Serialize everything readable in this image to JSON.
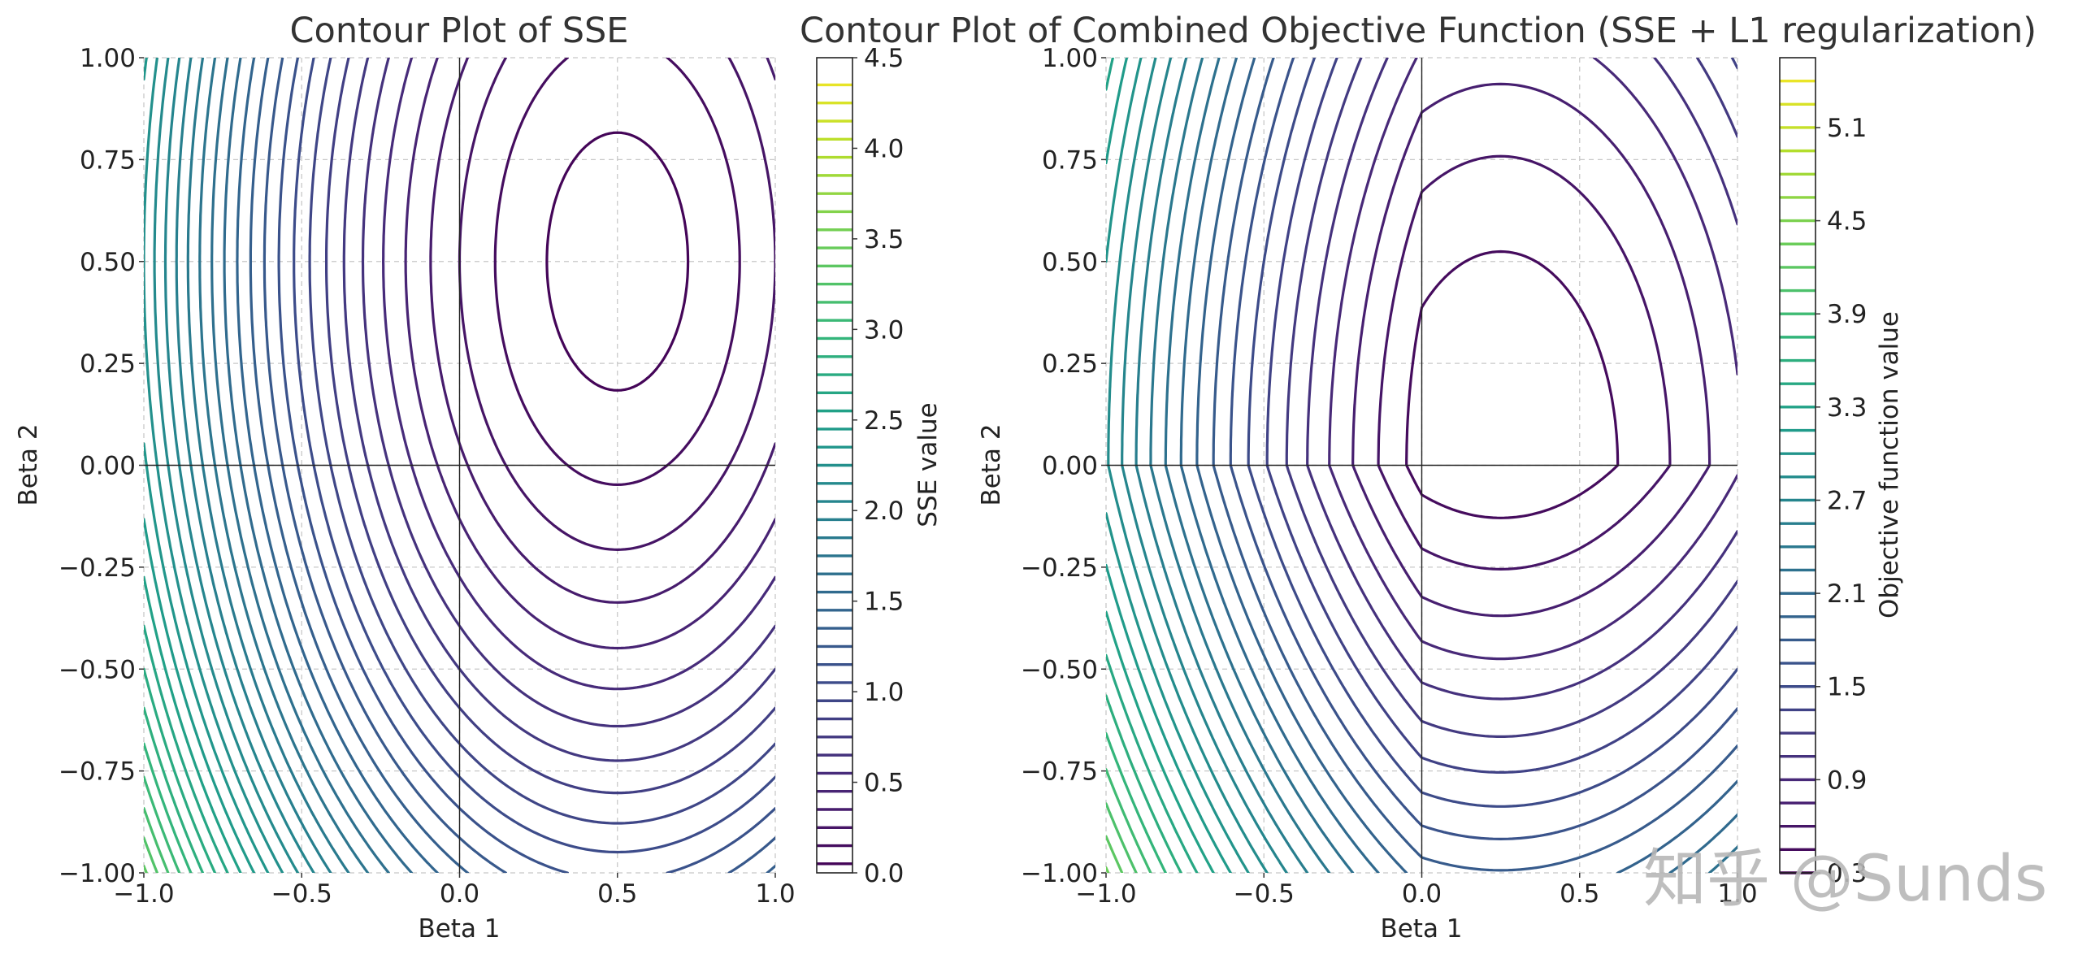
{
  "colors": {
    "viridis_stops": [
      "#440154",
      "#482878",
      "#3e4989",
      "#31688e",
      "#26828e",
      "#1f9e89",
      "#35b779",
      "#6ece58",
      "#b5de2b",
      "#fde725"
    ],
    "grid": "#c8c8c8",
    "zero_line": "#222222",
    "text": "#222222"
  },
  "watermark": "知乎 @Sunds",
  "chart_data": [
    {
      "type": "contour",
      "title": "Contour Plot of SSE",
      "xlabel": "Beta 1",
      "ylabel": "Beta 2",
      "xlim": [
        -1.0,
        1.0
      ],
      "ylim": [
        -1.0,
        1.0
      ],
      "xticks": [
        -1.0,
        -0.5,
        0.0,
        0.5,
        1.0
      ],
      "xtick_labels": [
        "−1.0",
        "−0.5",
        "0.0",
        "0.5",
        "1.0"
      ],
      "yticks": [
        -1.0,
        -0.75,
        -0.5,
        -0.25,
        0.0,
        0.25,
        0.5,
        0.75,
        1.0
      ],
      "ytick_labels": [
        "−1.00",
        "−0.75",
        "−0.50",
        "−0.25",
        "0.00",
        "0.25",
        "0.50",
        "0.75",
        "1.00"
      ],
      "grid": true,
      "function": "SSE = (beta1 - 0.5)^2 + 0.5 * (beta2 - 0.5)^2",
      "minimum": [
        0.5,
        0.5
      ],
      "levels": [
        0.05,
        0.15,
        0.25,
        0.35,
        0.45,
        0.55,
        0.65,
        0.75,
        0.85,
        0.95,
        1.05,
        1.15,
        1.25,
        1.35,
        1.45,
        1.55,
        1.65,
        1.75,
        1.85,
        1.95,
        2.05,
        2.15,
        2.25,
        2.35,
        2.45,
        2.55,
        2.65,
        2.75,
        2.85,
        2.95,
        3.05,
        3.15,
        3.25,
        3.35,
        3.45,
        3.55,
        3.65,
        3.75,
        3.85,
        3.95,
        4.05,
        4.15,
        4.25,
        4.35
      ],
      "colorbar": {
        "label": "SSE value",
        "range": [
          0.0,
          4.5
        ],
        "ticks": [
          0.0,
          0.5,
          1.0,
          1.5,
          2.0,
          2.5,
          3.0,
          3.5,
          4.0,
          4.5
        ],
        "tick_labels": [
          "0.0",
          "0.5",
          "1.0",
          "1.5",
          "2.0",
          "2.5",
          "3.0",
          "3.5",
          "4.0",
          "4.5"
        ]
      }
    },
    {
      "type": "contour",
      "title": "Contour Plot of Combined Objective Function (SSE + L1 regularization)",
      "xlabel": "Beta 1",
      "ylabel": "Beta 2",
      "xlim": [
        -1.0,
        1.0
      ],
      "ylim": [
        -1.0,
        1.0
      ],
      "xticks": [
        -1.0,
        -0.5,
        0.0,
        0.5,
        1.0
      ],
      "xtick_labels": [
        "−1.0",
        "−0.5",
        "0.0",
        "0.5",
        "1.0"
      ],
      "yticks": [
        -1.0,
        -0.75,
        -0.5,
        -0.25,
        0.0,
        0.25,
        0.5,
        0.75,
        1.0
      ],
      "ytick_labels": [
        "−1.00",
        "−0.75",
        "−0.50",
        "−0.25",
        "0.00",
        "0.25",
        "0.50",
        "0.75",
        "1.00"
      ],
      "grid": true,
      "function": "SSE + 0.5 * (|beta1| + |beta2|)",
      "minimum": [
        0.25,
        0.0
      ],
      "levels": [
        0.3,
        0.45,
        0.6,
        0.75,
        0.9,
        1.05,
        1.2,
        1.35,
        1.5,
        1.65,
        1.8,
        1.95,
        2.1,
        2.25,
        2.4,
        2.55,
        2.7,
        2.85,
        3.0,
        3.15,
        3.3,
        3.45,
        3.6,
        3.75,
        3.9,
        4.05,
        4.2,
        4.35,
        4.5,
        4.65,
        4.8,
        4.95,
        5.1,
        5.25,
        5.4
      ],
      "colorbar": {
        "label": "Objective function value",
        "range": [
          0.3,
          5.55
        ],
        "ticks": [
          0.3,
          0.9,
          1.5,
          2.1,
          2.7,
          3.3,
          3.9,
          4.5,
          5.1
        ],
        "tick_labels": [
          "0.3",
          "0.9",
          "1.5",
          "2.1",
          "2.7",
          "3.3",
          "3.9",
          "4.5",
          "5.1"
        ]
      }
    }
  ]
}
